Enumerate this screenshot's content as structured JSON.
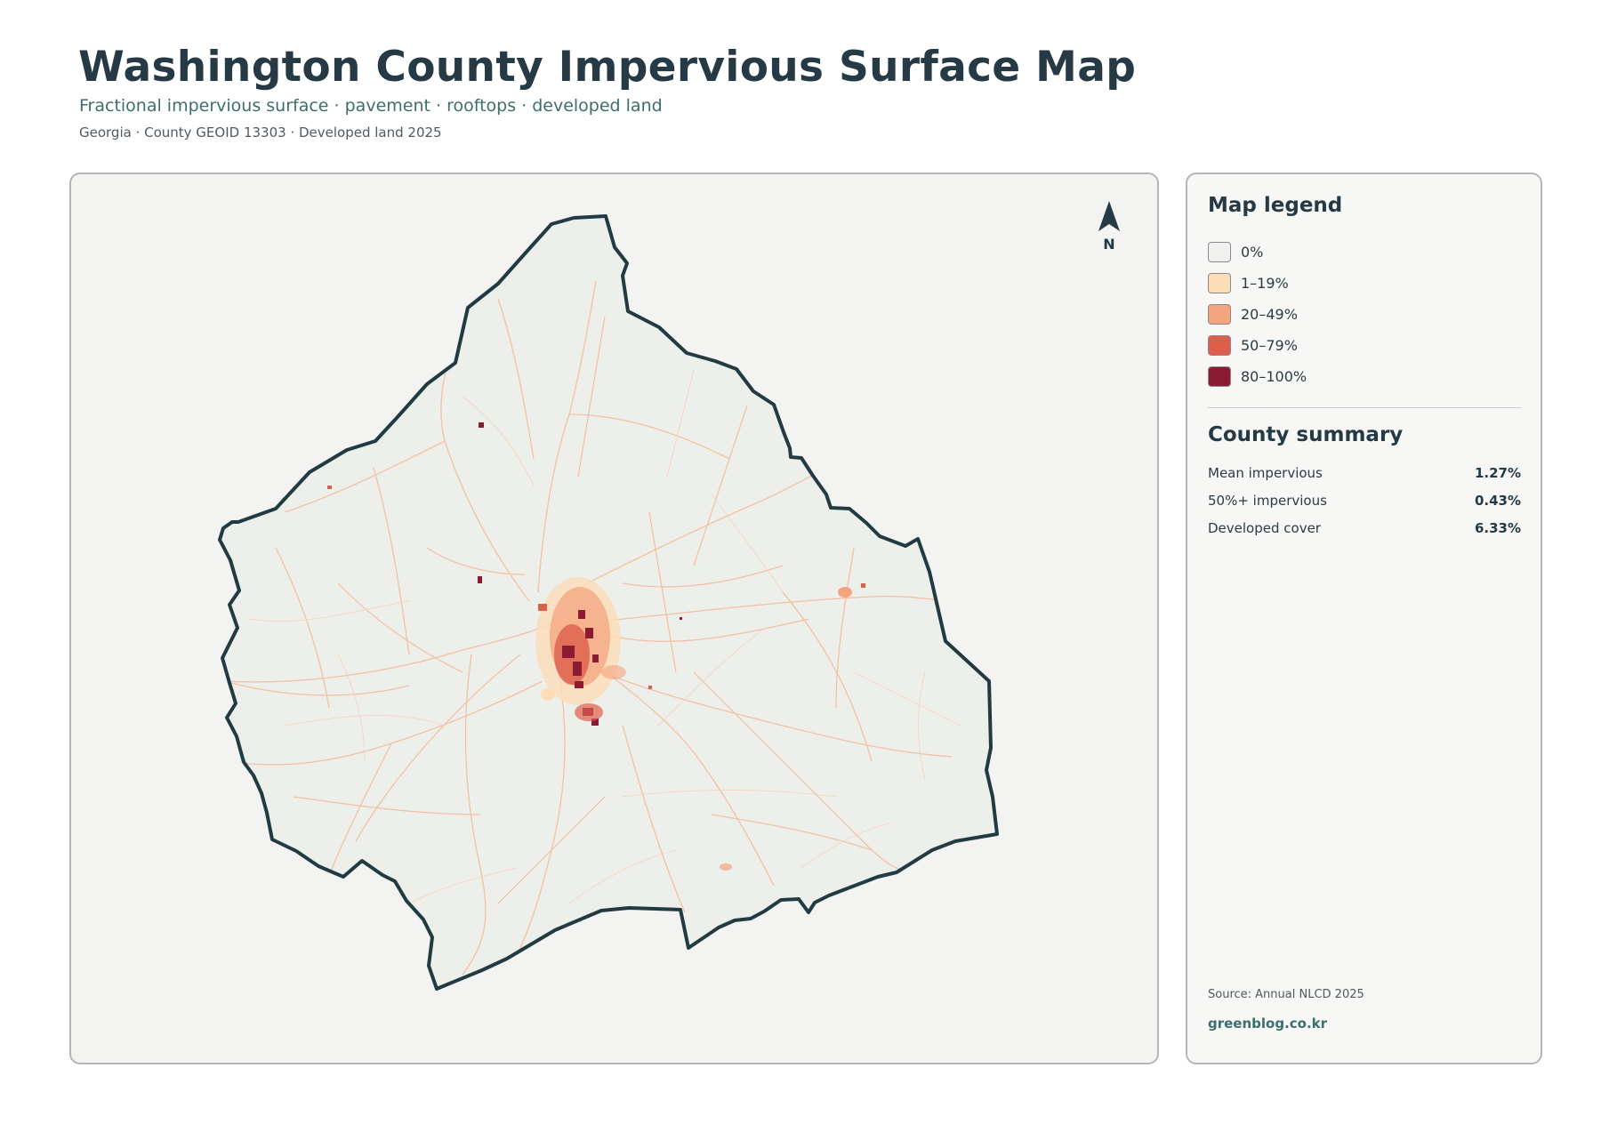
{
  "header": {
    "title": "Washington County Impervious Surface Map",
    "subtitle": "Fractional impervious surface · pavement · rooftops · developed land",
    "meta": "Georgia · County GEOID 13303 · Developed land 2025"
  },
  "map": {
    "north_label": "N",
    "county_fill": "#edefea",
    "boundary_color": "#223a42"
  },
  "legend": {
    "title": "Map legend",
    "items": [
      {
        "label": "0%",
        "color": "#f0f0ee"
      },
      {
        "label": "1–19%",
        "color": "#fddcb8"
      },
      {
        "label": "20–49%",
        "color": "#f4a47e"
      },
      {
        "label": "50–79%",
        "color": "#dd5f4b"
      },
      {
        "label": "80–100%",
        "color": "#8c1a33"
      }
    ]
  },
  "summary": {
    "title": "County summary",
    "rows": [
      {
        "label": "Mean impervious",
        "value": "1.27%"
      },
      {
        "label": "50%+ impervious",
        "value": "0.43%"
      },
      {
        "label": "Developed cover",
        "value": "6.33%"
      }
    ]
  },
  "footer": {
    "source": "Source: Annual NLCD 2025",
    "brand": "greenblog.co.kr"
  }
}
